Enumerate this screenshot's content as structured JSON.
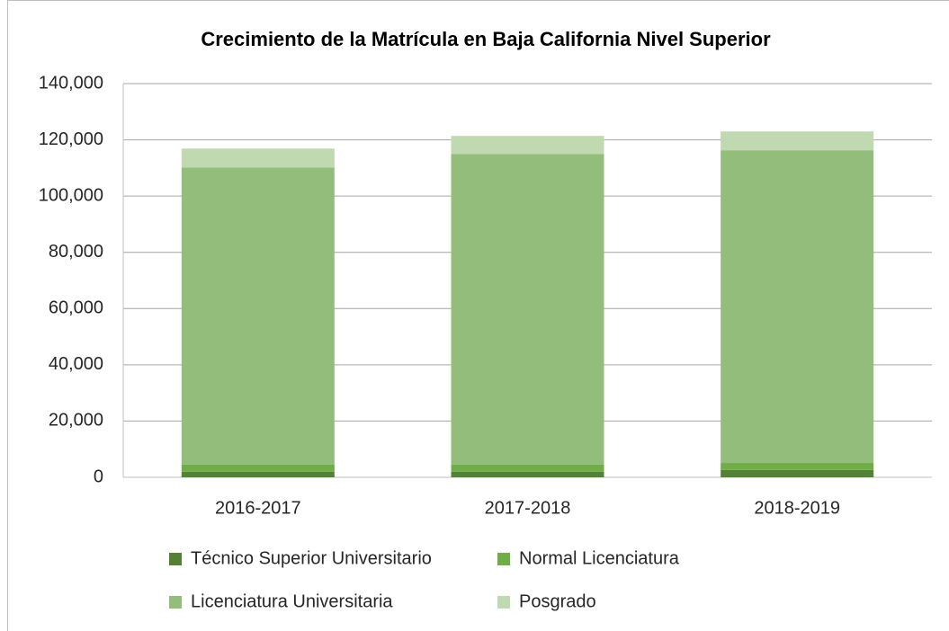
{
  "chart_data": {
    "type": "stacked_bar",
    "title": "Crecimiento de la Matrícula en Baja California Nivel Superior",
    "categories": [
      "2016-2017",
      "2017-2018",
      "2018-2019"
    ],
    "series": [
      {
        "name": "Técnico Superior Universitario",
        "color": "#538135",
        "values": [
          2000,
          2000,
          2600
        ]
      },
      {
        "name": "Normal Licenciatura",
        "color": "#70ad47",
        "values": [
          2500,
          2500,
          2500
        ]
      },
      {
        "name": "Licenciatura Universitaria",
        "color": "#93bd7b",
        "values": [
          105700,
          110500,
          111200
        ]
      },
      {
        "name": "Posgrado",
        "color": "#c0d9b1",
        "values": [
          6700,
          6400,
          6700
        ]
      }
    ],
    "ylim": [
      0,
      140000
    ],
    "yticks": [
      0,
      {
        "value": 20000,
        "label": "20,000"
      },
      {
        "value": 40000,
        "label": "40,000"
      },
      {
        "value": 60000,
        "label": "60,000"
      },
      {
        "value": 80000,
        "label": "80,000"
      },
      {
        "value": 100000,
        "label": "100,000"
      },
      {
        "value": 120000,
        "label": "120,000"
      },
      {
        "value": 140000,
        "label": "140,000"
      }
    ],
    "grid": true,
    "legend": "bottom"
  }
}
